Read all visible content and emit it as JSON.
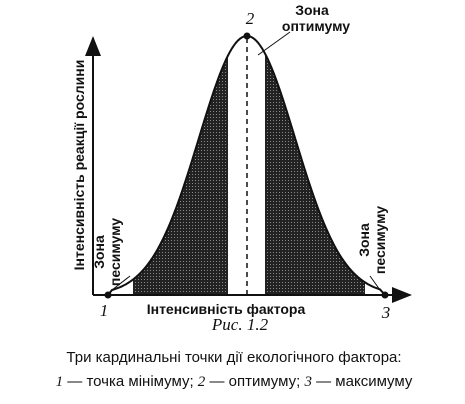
{
  "figure": {
    "peak_label": "2",
    "optimum_zone": [
      "Зона",
      "оптимуму"
    ],
    "y_axis_label": "Інтенсивність реакції рослини",
    "left_pessimum_zone": [
      "Зона",
      "песимуму"
    ],
    "right_pessimum_zone": [
      "Зона",
      "песимуму"
    ],
    "min_label": "1",
    "x_axis_label": "Інтенсивність фактора",
    "max_label": "3",
    "figure_number": "Рис. 1.2",
    "caption_line1": "Три кардинальні точки дії екологічного фактора:",
    "caption_line2": [
      "1",
      " — точка мінімуму; ",
      "2",
      " — оптимуму; ",
      "3",
      " — максимуму"
    ]
  }
}
